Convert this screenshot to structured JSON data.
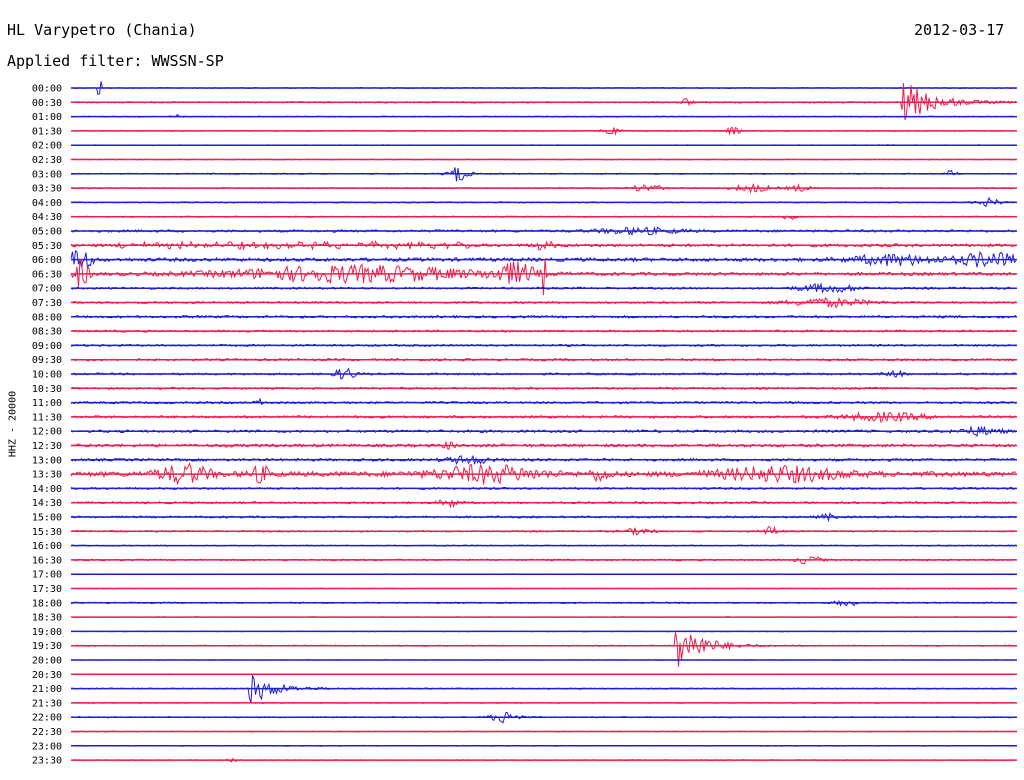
{
  "header": {
    "station": "HL Varypetro (Chania)",
    "filter": "Applied filter: WWSSN-SP",
    "date": "2012-03-17",
    "channel_label": "HHZ - 20000"
  },
  "colors": {
    "line_a": "#1f1fd6",
    "line_b": "#ef1d4e"
  },
  "chart_data": {
    "type": "line",
    "title": "HL Varypetro (Chania)",
    "ylabel": "HHZ - 20000",
    "categories": [
      "00:00",
      "00:30",
      "01:00",
      "01:30",
      "02:00",
      "02:30",
      "03:00",
      "03:30",
      "04:00",
      "04:30",
      "05:00",
      "05:30",
      "06:00",
      "06:30",
      "07:00",
      "07:30",
      "08:00",
      "08:30",
      "09:00",
      "09:30",
      "10:00",
      "10:30",
      "11:00",
      "11:30",
      "12:00",
      "12:30",
      "13:00",
      "13:30",
      "14:00",
      "14:30",
      "15:00",
      "15:30",
      "16:00",
      "16:30",
      "17:00",
      "17:30",
      "18:00",
      "18:30",
      "19:00",
      "19:30",
      "20:00",
      "20:30",
      "21:00",
      "21:30",
      "22:00",
      "22:30",
      "23:00",
      "23:30"
    ],
    "traces": [
      {
        "noise": 0.5,
        "events": [
          [
            0.03,
            8,
            1,
            "spike"
          ]
        ]
      },
      {
        "noise": 0.7,
        "events": [
          [
            0.88,
            22,
            12,
            "quake"
          ],
          [
            0.65,
            4,
            6,
            "burst"
          ]
        ]
      },
      {
        "noise": 0.5,
        "events": [
          [
            0.11,
            3,
            4,
            "burst"
          ]
        ]
      },
      {
        "noise": 0.5,
        "events": [
          [
            0.57,
            4,
            8,
            "burst"
          ],
          [
            0.7,
            4,
            6,
            "burst"
          ]
        ]
      },
      {
        "noise": 0.4,
        "events": []
      },
      {
        "noise": 0.4,
        "events": []
      },
      {
        "noise": 0.6,
        "events": [
          [
            0.41,
            8,
            10,
            "burst"
          ],
          [
            0.93,
            3,
            6,
            "burst"
          ]
        ]
      },
      {
        "noise": 0.6,
        "events": [
          [
            0.61,
            4,
            14,
            "burst"
          ],
          [
            0.72,
            4,
            18,
            "burst"
          ],
          [
            0.77,
            3,
            12,
            "burst"
          ]
        ]
      },
      {
        "noise": 0.6,
        "events": [
          [
            0.97,
            4,
            12,
            "burst"
          ]
        ]
      },
      {
        "noise": 0.6,
        "events": [
          [
            0.76,
            3,
            6,
            "burst"
          ]
        ]
      },
      {
        "noise": 1.2,
        "events": [
          [
            0.6,
            3,
            40,
            "burst"
          ]
        ]
      },
      {
        "noise": 1.5,
        "events": [
          [
            0.05,
            4,
            60,
            "gaps"
          ],
          [
            0.5,
            4,
            10,
            "burst"
          ]
        ]
      },
      {
        "noise": 1.8,
        "events": [
          [
            0.01,
            12,
            10,
            "burst"
          ],
          [
            0.87,
            5,
            40,
            "burst"
          ],
          [
            0.97,
            7,
            30,
            "burst"
          ]
        ]
      },
      {
        "noise": 1.6,
        "events": [
          [
            0.01,
            14,
            8,
            "burst"
          ],
          [
            0.3,
            8,
            120,
            "burst"
          ],
          [
            0.47,
            10,
            20,
            "burst"
          ],
          [
            0.5,
            18,
            2,
            "spike"
          ]
        ]
      },
      {
        "noise": 1.0,
        "events": [
          [
            0.8,
            4,
            30,
            "burst"
          ]
        ]
      },
      {
        "noise": 1.0,
        "events": [
          [
            0.8,
            4,
            40,
            "burst"
          ]
        ]
      },
      {
        "noise": 1.2,
        "events": []
      },
      {
        "noise": 1.0,
        "events": []
      },
      {
        "noise": 1.0,
        "events": []
      },
      {
        "noise": 1.1,
        "events": []
      },
      {
        "noise": 1.0,
        "events": [
          [
            0.29,
            6,
            10,
            "burst"
          ],
          [
            0.87,
            4,
            8,
            "burst"
          ]
        ]
      },
      {
        "noise": 1.0,
        "events": []
      },
      {
        "noise": 1.1,
        "events": [
          [
            0.2,
            3,
            4,
            "burst"
          ]
        ]
      },
      {
        "noise": 1.2,
        "events": [
          [
            0.86,
            4,
            40,
            "burst"
          ]
        ]
      },
      {
        "noise": 1.3,
        "events": [
          [
            0.96,
            4,
            20,
            "burst"
          ]
        ]
      },
      {
        "noise": 1.5,
        "events": [
          [
            0.4,
            3,
            6,
            "burst"
          ]
        ]
      },
      {
        "noise": 1.3,
        "events": [
          [
            0.42,
            4,
            20,
            "burst"
          ]
        ]
      },
      {
        "noise": 2.5,
        "events": [
          [
            0.12,
            9,
            25,
            "burst"
          ],
          [
            0.2,
            7,
            12,
            "burst"
          ],
          [
            0.44,
            8,
            50,
            "burst"
          ],
          [
            0.56,
            6,
            10,
            "burst"
          ],
          [
            0.75,
            7,
            60,
            "burst"
          ]
        ]
      },
      {
        "noise": 1.0,
        "events": []
      },
      {
        "noise": 1.0,
        "events": [
          [
            0.4,
            4,
            10,
            "burst"
          ]
        ]
      },
      {
        "noise": 1.0,
        "events": [
          [
            0.8,
            3,
            8,
            "burst"
          ]
        ]
      },
      {
        "noise": 0.8,
        "events": [
          [
            0.6,
            3,
            14,
            "burst"
          ],
          [
            0.74,
            5,
            8,
            "burst"
          ]
        ]
      },
      {
        "noise": 0.6,
        "events": []
      },
      {
        "noise": 0.8,
        "events": [
          [
            0.78,
            4,
            12,
            "burst"
          ]
        ]
      },
      {
        "noise": 0.3,
        "events": []
      },
      {
        "noise": 0.3,
        "events": []
      },
      {
        "noise": 0.7,
        "events": [
          [
            0.82,
            3,
            12,
            "burst"
          ]
        ]
      },
      {
        "noise": 0.3,
        "events": []
      },
      {
        "noise": 0.3,
        "events": []
      },
      {
        "noise": 0.6,
        "events": [
          [
            0.64,
            28,
            10,
            "quake"
          ]
        ]
      },
      {
        "noise": 0.3,
        "events": []
      },
      {
        "noise": 0.3,
        "events": []
      },
      {
        "noise": 0.6,
        "events": [
          [
            0.19,
            16,
            10,
            "quake"
          ]
        ]
      },
      {
        "noise": 0.5,
        "events": []
      },
      {
        "noise": 0.6,
        "events": [
          [
            0.46,
            6,
            14,
            "burst"
          ]
        ]
      },
      {
        "noise": 0.4,
        "events": []
      },
      {
        "noise": 0.4,
        "events": []
      },
      {
        "noise": 0.4,
        "events": [
          [
            0.17,
            3,
            4,
            "burst"
          ]
        ]
      }
    ],
    "grid": false,
    "legend": "none"
  }
}
